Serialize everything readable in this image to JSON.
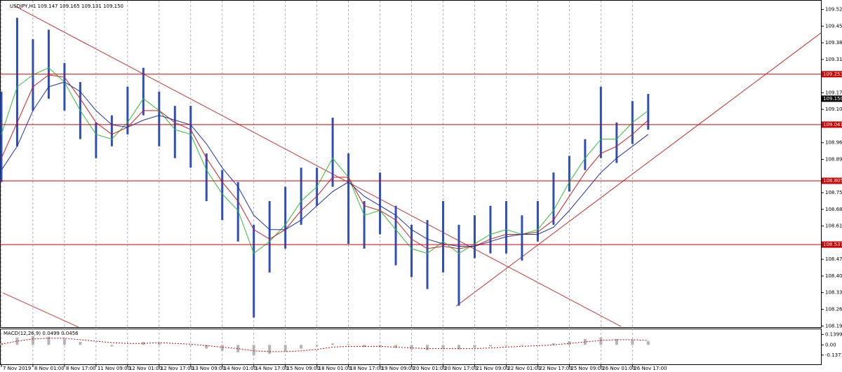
{
  "chart_data": [
    {
      "type": "range",
      "title": "USDJPY,H1  109.147 109.165 109.131 109.150",
      "x": [
        0,
        8,
        16,
        24,
        32,
        40,
        48,
        56,
        64,
        72,
        80,
        88,
        96,
        104,
        112,
        120,
        128,
        136,
        144,
        152,
        160,
        168,
        176,
        184,
        192,
        200,
        208,
        216,
        224,
        232,
        240,
        248,
        256,
        264,
        272,
        280,
        288,
        296,
        304,
        312,
        320,
        328
      ],
      "high": [
        109.18,
        109.49,
        109.4,
        109.44,
        109.3,
        109.22,
        109.05,
        109.08,
        109.2,
        109.28,
        109.18,
        109.12,
        109.12,
        108.92,
        108.85,
        108.8,
        108.62,
        108.72,
        108.78,
        108.86,
        108.86,
        109.07,
        108.92,
        108.72,
        108.84,
        108.7,
        108.62,
        108.64,
        108.72,
        108.62,
        108.66,
        108.7,
        108.72,
        108.66,
        108.72,
        108.84,
        108.91,
        108.98,
        109.2,
        109.05,
        109.14,
        109.17
      ],
      "low": [
        108.8,
        108.95,
        109.1,
        109.15,
        109.1,
        108.98,
        108.9,
        108.95,
        109.0,
        109.08,
        108.95,
        108.9,
        108.86,
        108.72,
        108.64,
        108.55,
        108.23,
        108.42,
        108.52,
        108.62,
        108.7,
        108.78,
        108.54,
        108.52,
        108.58,
        108.45,
        108.4,
        108.35,
        108.42,
        108.28,
        108.48,
        108.5,
        108.5,
        108.47,
        108.55,
        108.62,
        108.76,
        108.85,
        108.9,
        108.88,
        108.96,
        109.02
      ],
      "color": "#2e4fb8",
      "series": [
        {
          "color": "#2fbf2f",
          "values": [
            109.0,
            109.2,
            109.25,
            109.28,
            109.22,
            109.1,
            109.0,
            108.98,
            109.05,
            109.15,
            109.1,
            109.02,
            109.0,
            108.85,
            108.75,
            108.68,
            108.5,
            108.55,
            108.62,
            108.72,
            108.78,
            108.9,
            108.82,
            108.66,
            108.68,
            108.6,
            108.52,
            108.5,
            108.55,
            108.5,
            108.54,
            108.58,
            108.6,
            108.58,
            108.6,
            108.68,
            108.8,
            108.9,
            108.98,
            108.98,
            109.05,
            109.1
          ]
        },
        {
          "color": "#c81e1e",
          "values": [
            108.9,
            109.05,
            109.2,
            109.25,
            109.24,
            109.15,
            109.05,
            109.0,
            109.03,
            109.1,
            109.1,
            109.05,
            109.02,
            108.9,
            108.8,
            108.72,
            108.6,
            108.56,
            108.6,
            108.68,
            108.74,
            108.82,
            108.82,
            108.7,
            108.68,
            108.64,
            108.56,
            108.52,
            108.53,
            108.52,
            108.53,
            108.56,
            108.58,
            108.58,
            108.59,
            108.64,
            108.74,
            108.84,
            108.92,
            108.95,
            109.0,
            109.06
          ]
        },
        {
          "color": "#1f2fb0",
          "values": [
            108.85,
            108.95,
            109.1,
            109.2,
            109.22,
            109.18,
            109.1,
            109.04,
            109.03,
            109.06,
            109.08,
            109.06,
            109.04,
            108.96,
            108.86,
            108.78,
            108.66,
            108.6,
            108.6,
            108.64,
            108.7,
            108.76,
            108.8,
            108.74,
            108.7,
            108.66,
            108.6,
            108.56,
            108.54,
            108.53,
            108.53,
            108.55,
            108.57,
            108.58,
            108.58,
            108.61,
            108.68,
            108.76,
            108.84,
            108.9,
            108.95,
            109.0
          ]
        }
      ],
      "levels": [
        {
          "value": 109.253,
          "color": "#d00000"
        },
        {
          "value": 109.041,
          "color": "#d00000"
        },
        {
          "value": 108.805,
          "color": "#d00000"
        },
        {
          "value": 108.537,
          "color": "#d00000"
        }
      ],
      "last": {
        "value": 109.15,
        "label": "109.150"
      },
      "xlim": [
        -0.7,
        415.6
      ],
      "ylim": [
        108.19,
        109.55
      ],
      "xticks": [
        {
          "value": 0,
          "label": "7 Nov 2019"
        },
        {
          "value": 16,
          "label": "8 Nov 01:00"
        },
        {
          "value": 32,
          "label": "8 Nov 17:00"
        },
        {
          "value": 48,
          "label": "11 Nov 09:00"
        },
        {
          "value": 64,
          "label": "12 Nov 01:00"
        },
        {
          "value": 80,
          "label": "12 Nov 17:00"
        },
        {
          "value": 96,
          "label": "13 Nov 09:00"
        },
        {
          "value": 112,
          "label": "14 Nov 01:00"
        },
        {
          "value": 128,
          "label": "14 Nov 17:00"
        },
        {
          "value": 144,
          "label": "15 Nov 09:00"
        },
        {
          "value": 160,
          "label": "18 Nov 01:00"
        },
        {
          "value": 176,
          "label": "18 Nov 17:00"
        },
        {
          "value": 192,
          "label": "19 Nov 09:00"
        },
        {
          "value": 208,
          "label": "20 Nov 01:00"
        },
        {
          "value": 224,
          "label": "20 Nov 17:00"
        },
        {
          "value": 240,
          "label": "21 Nov 09:00"
        },
        {
          "value": 256,
          "label": "22 Nov 01:00"
        },
        {
          "value": 272,
          "label": "22 Nov 17:00"
        },
        {
          "value": 288,
          "label": "25 Nov 09:00"
        },
        {
          "value": 304,
          "label": "26 Nov 01:00"
        },
        {
          "value": 320,
          "label": "26 Nov 17:00"
        }
      ],
      "yticks": [
        109.525,
        109.455,
        109.385,
        109.315,
        109.175,
        109.105,
        108.965,
        108.895,
        108.755,
        108.685,
        108.615,
        108.475,
        108.405,
        108.335,
        108.265,
        108.195
      ],
      "grid": true
    },
    {
      "type": "bar",
      "title": "MACD(12,26,9) 0.0499 0.0456",
      "x": [
        0,
        8,
        16,
        24,
        32,
        40,
        48,
        56,
        64,
        72,
        80,
        88,
        96,
        104,
        112,
        120,
        128,
        136,
        144,
        152,
        160,
        168,
        176,
        184,
        192,
        200,
        208,
        216,
        224,
        232,
        240,
        248,
        256,
        264,
        272,
        280,
        288,
        296,
        304,
        312,
        320,
        328
      ],
      "values": [
        0.02,
        0.1,
        0.12,
        0.11,
        0.08,
        0.04,
        0.0,
        -0.02,
        0.0,
        0.04,
        0.03,
        0.0,
        -0.01,
        -0.05,
        -0.08,
        -0.1,
        -0.14,
        -0.12,
        -0.09,
        -0.05,
        -0.02,
        0.02,
        0.01,
        -0.03,
        -0.03,
        -0.04,
        -0.06,
        -0.07,
        -0.05,
        -0.06,
        -0.04,
        -0.02,
        -0.01,
        -0.01,
        0.0,
        0.02,
        0.05,
        0.08,
        0.1,
        0.08,
        0.07,
        0.05
      ],
      "color": "#b4b4b4",
      "signal": {
        "color": "#d00000",
        "values": [
          0.01,
          0.05,
          0.08,
          0.09,
          0.09,
          0.07,
          0.05,
          0.03,
          0.02,
          0.02,
          0.03,
          0.02,
          0.01,
          -0.01,
          -0.03,
          -0.05,
          -0.08,
          -0.09,
          -0.09,
          -0.08,
          -0.06,
          -0.03,
          -0.02,
          -0.02,
          -0.02,
          -0.03,
          -0.04,
          -0.05,
          -0.05,
          -0.05,
          -0.05,
          -0.04,
          -0.03,
          -0.02,
          -0.01,
          0.0,
          0.02,
          0.04,
          0.06,
          0.07,
          0.07,
          0.06
        ]
      },
      "xlim": [
        -0.7,
        415.6
      ],
      "ylim": [
        -0.27,
        0.21
      ],
      "yticks": [
        0.1399,
        {
          "value": 0,
          "label": "0.00"
        },
        -0.1371
      ]
    }
  ]
}
